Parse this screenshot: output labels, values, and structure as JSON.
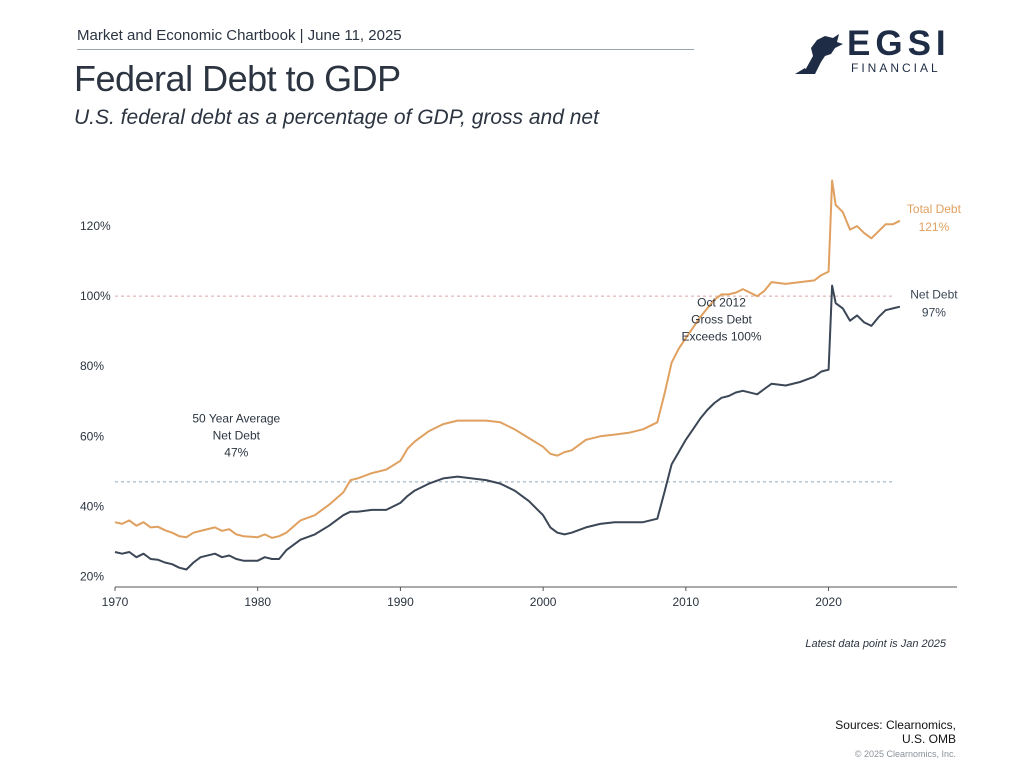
{
  "header": {
    "text": "Market and Economic Chartbook | June 11, 2025"
  },
  "title": "Federal Debt to GDP",
  "subtitle": "U.S. federal debt as a percentage of GDP, gross and net",
  "logo": {
    "name": "EGSI",
    "sub": "FINANCIAL",
    "icon": "lion-icon"
  },
  "footer": {
    "note": "Latest data point is Jan 2025",
    "sources_line1": "Sources: Clearnomics,",
    "sources_line2": "U.S. OMB",
    "copyright": "© 2025 Clearnomics, Inc."
  },
  "chart_data": {
    "type": "line",
    "title": "Federal Debt to GDP",
    "xlim": [
      1970,
      2029
    ],
    "ylim": [
      17,
      136
    ],
    "x_ticks": [
      1970,
      1980,
      1990,
      2000,
      2010,
      2020
    ],
    "x_tick_labels": [
      "1970",
      "1980",
      "1990",
      "2000",
      "2010",
      "2020"
    ],
    "y_ticks": [
      20,
      40,
      60,
      80,
      100,
      120
    ],
    "y_tick_labels": [
      "20%",
      "40%",
      "60%",
      "80%",
      "100%",
      "120%"
    ],
    "grid": false,
    "reference_lines": [
      {
        "y": 100,
        "color": "#d9a5a5"
      },
      {
        "y": 47,
        "color": "#8fa6b8"
      }
    ],
    "series": [
      {
        "name": "Total Debt",
        "color": "#e0a060",
        "end_label": "Total Debt",
        "end_value": "121%",
        "points": [
          [
            1970,
            35.5
          ],
          [
            1970.5,
            35.0
          ],
          [
            1971,
            36.0
          ],
          [
            1971.5,
            34.5
          ],
          [
            1972,
            35.5
          ],
          [
            1972.5,
            34.0
          ],
          [
            1973,
            34.2
          ],
          [
            1973.5,
            33.2
          ],
          [
            1974,
            32.5
          ],
          [
            1974.5,
            31.5
          ],
          [
            1975,
            31.2
          ],
          [
            1975.5,
            32.5
          ],
          [
            1976,
            33.0
          ],
          [
            1977,
            34.0
          ],
          [
            1977.5,
            33.0
          ],
          [
            1978,
            33.5
          ],
          [
            1978.5,
            32.0
          ],
          [
            1979,
            31.5
          ],
          [
            1980,
            31.2
          ],
          [
            1980.5,
            32.0
          ],
          [
            1981,
            31.0
          ],
          [
            1981.5,
            31.5
          ],
          [
            1982,
            32.5
          ],
          [
            1983,
            36.0
          ],
          [
            1984,
            37.5
          ],
          [
            1985,
            40.5
          ],
          [
            1986,
            44.0
          ],
          [
            1986.5,
            47.5
          ],
          [
            1987,
            48.0
          ],
          [
            1988,
            49.5
          ],
          [
            1989,
            50.5
          ],
          [
            1990,
            53.0
          ],
          [
            1990.5,
            56.5
          ],
          [
            1991,
            58.5
          ],
          [
            1992,
            61.5
          ],
          [
            1993,
            63.5
          ],
          [
            1994,
            64.5
          ],
          [
            1995,
            64.5
          ],
          [
            1996,
            64.5
          ],
          [
            1997,
            64.0
          ],
          [
            1998,
            62.0
          ],
          [
            1999,
            59.5
          ],
          [
            2000,
            57.0
          ],
          [
            2000.5,
            55.0
          ],
          [
            2001,
            54.5
          ],
          [
            2001.5,
            55.5
          ],
          [
            2002,
            56.0
          ],
          [
            2003,
            59.0
          ],
          [
            2004,
            60.0
          ],
          [
            2005,
            60.5
          ],
          [
            2006,
            61.0
          ],
          [
            2007,
            62.0
          ],
          [
            2008,
            64.0
          ],
          [
            2008.5,
            72.0
          ],
          [
            2009,
            81.0
          ],
          [
            2009.5,
            85.0
          ],
          [
            2010,
            88.0
          ],
          [
            2010.5,
            91.0
          ],
          [
            2011,
            94.0
          ],
          [
            2011.5,
            96.5
          ],
          [
            2012,
            99.0
          ],
          [
            2012.5,
            100.5
          ],
          [
            2013,
            100.5
          ],
          [
            2013.5,
            101.0
          ],
          [
            2014,
            102.0
          ],
          [
            2015,
            100.0
          ],
          [
            2015.5,
            101.5
          ],
          [
            2016,
            104.0
          ],
          [
            2017,
            103.5
          ],
          [
            2018,
            104.0
          ],
          [
            2019,
            104.5
          ],
          [
            2019.5,
            106.0
          ],
          [
            2020,
            107.0
          ],
          [
            2020.25,
            133.0
          ],
          [
            2020.5,
            126.0
          ],
          [
            2021,
            124.0
          ],
          [
            2021.5,
            119.0
          ],
          [
            2022,
            120.0
          ],
          [
            2022.5,
            118.0
          ],
          [
            2023,
            116.5
          ],
          [
            2023.5,
            118.5
          ],
          [
            2024,
            120.5
          ],
          [
            2024.5,
            120.5
          ],
          [
            2025,
            121.5
          ]
        ]
      },
      {
        "name": "Net Debt",
        "color": "#3b4756",
        "end_label": "Net Debt",
        "end_value": "97%",
        "points": [
          [
            1970,
            27.0
          ],
          [
            1970.5,
            26.5
          ],
          [
            1971,
            27.0
          ],
          [
            1971.5,
            25.5
          ],
          [
            1972,
            26.5
          ],
          [
            1972.5,
            25.0
          ],
          [
            1973,
            24.8
          ],
          [
            1973.5,
            24.0
          ],
          [
            1974,
            23.5
          ],
          [
            1974.5,
            22.5
          ],
          [
            1975,
            22.0
          ],
          [
            1975.5,
            24.0
          ],
          [
            1976,
            25.5
          ],
          [
            1977,
            26.5
          ],
          [
            1977.5,
            25.5
          ],
          [
            1978,
            26.0
          ],
          [
            1978.5,
            25.0
          ],
          [
            1979,
            24.5
          ],
          [
            1980,
            24.5
          ],
          [
            1980.5,
            25.5
          ],
          [
            1981,
            25.0
          ],
          [
            1981.5,
            25.0
          ],
          [
            1982,
            27.5
          ],
          [
            1983,
            30.5
          ],
          [
            1984,
            32.0
          ],
          [
            1985,
            34.5
          ],
          [
            1986,
            37.5
          ],
          [
            1986.5,
            38.5
          ],
          [
            1987,
            38.5
          ],
          [
            1988,
            39.0
          ],
          [
            1989,
            39.0
          ],
          [
            1990,
            41.0
          ],
          [
            1990.5,
            43.0
          ],
          [
            1991,
            44.5
          ],
          [
            1992,
            46.5
          ],
          [
            1993,
            48.0
          ],
          [
            1994,
            48.5
          ],
          [
            1995,
            48.0
          ],
          [
            1996,
            47.5
          ],
          [
            1997,
            46.5
          ],
          [
            1998,
            44.5
          ],
          [
            1999,
            41.5
          ],
          [
            2000,
            37.5
          ],
          [
            2000.5,
            34.0
          ],
          [
            2001,
            32.5
          ],
          [
            2001.5,
            32.0
          ],
          [
            2002,
            32.5
          ],
          [
            2003,
            34.0
          ],
          [
            2004,
            35.0
          ],
          [
            2005,
            35.5
          ],
          [
            2006,
            35.5
          ],
          [
            2007,
            35.5
          ],
          [
            2008,
            36.5
          ],
          [
            2008.5,
            44.0
          ],
          [
            2009,
            52.0
          ],
          [
            2009.5,
            55.5
          ],
          [
            2010,
            59.0
          ],
          [
            2010.5,
            62.0
          ],
          [
            2011,
            65.0
          ],
          [
            2011.5,
            67.5
          ],
          [
            2012,
            69.5
          ],
          [
            2012.5,
            71.0
          ],
          [
            2013,
            71.5
          ],
          [
            2013.5,
            72.5
          ],
          [
            2014,
            73.0
          ],
          [
            2015,
            72.0
          ],
          [
            2015.5,
            73.5
          ],
          [
            2016,
            75.0
          ],
          [
            2017,
            74.5
          ],
          [
            2018,
            75.5
          ],
          [
            2019,
            77.0
          ],
          [
            2019.5,
            78.5
          ],
          [
            2020,
            79.0
          ],
          [
            2020.25,
            103.0
          ],
          [
            2020.5,
            98.0
          ],
          [
            2021,
            96.5
          ],
          [
            2021.5,
            93.0
          ],
          [
            2022,
            94.5
          ],
          [
            2022.5,
            92.5
          ],
          [
            2023,
            91.5
          ],
          [
            2023.5,
            94.0
          ],
          [
            2024,
            96.0
          ],
          [
            2024.5,
            96.5
          ],
          [
            2025,
            97.0
          ]
        ]
      }
    ],
    "annotations": [
      {
        "lines": [
          "50 Year Average",
          "Net Debt",
          "47%"
        ],
        "x": 1978.5,
        "y": 64
      },
      {
        "lines": [
          "Oct 2012",
          "Gross Debt",
          "Exceeds 100%"
        ],
        "x": 2012.5,
        "y": 97
      }
    ]
  }
}
